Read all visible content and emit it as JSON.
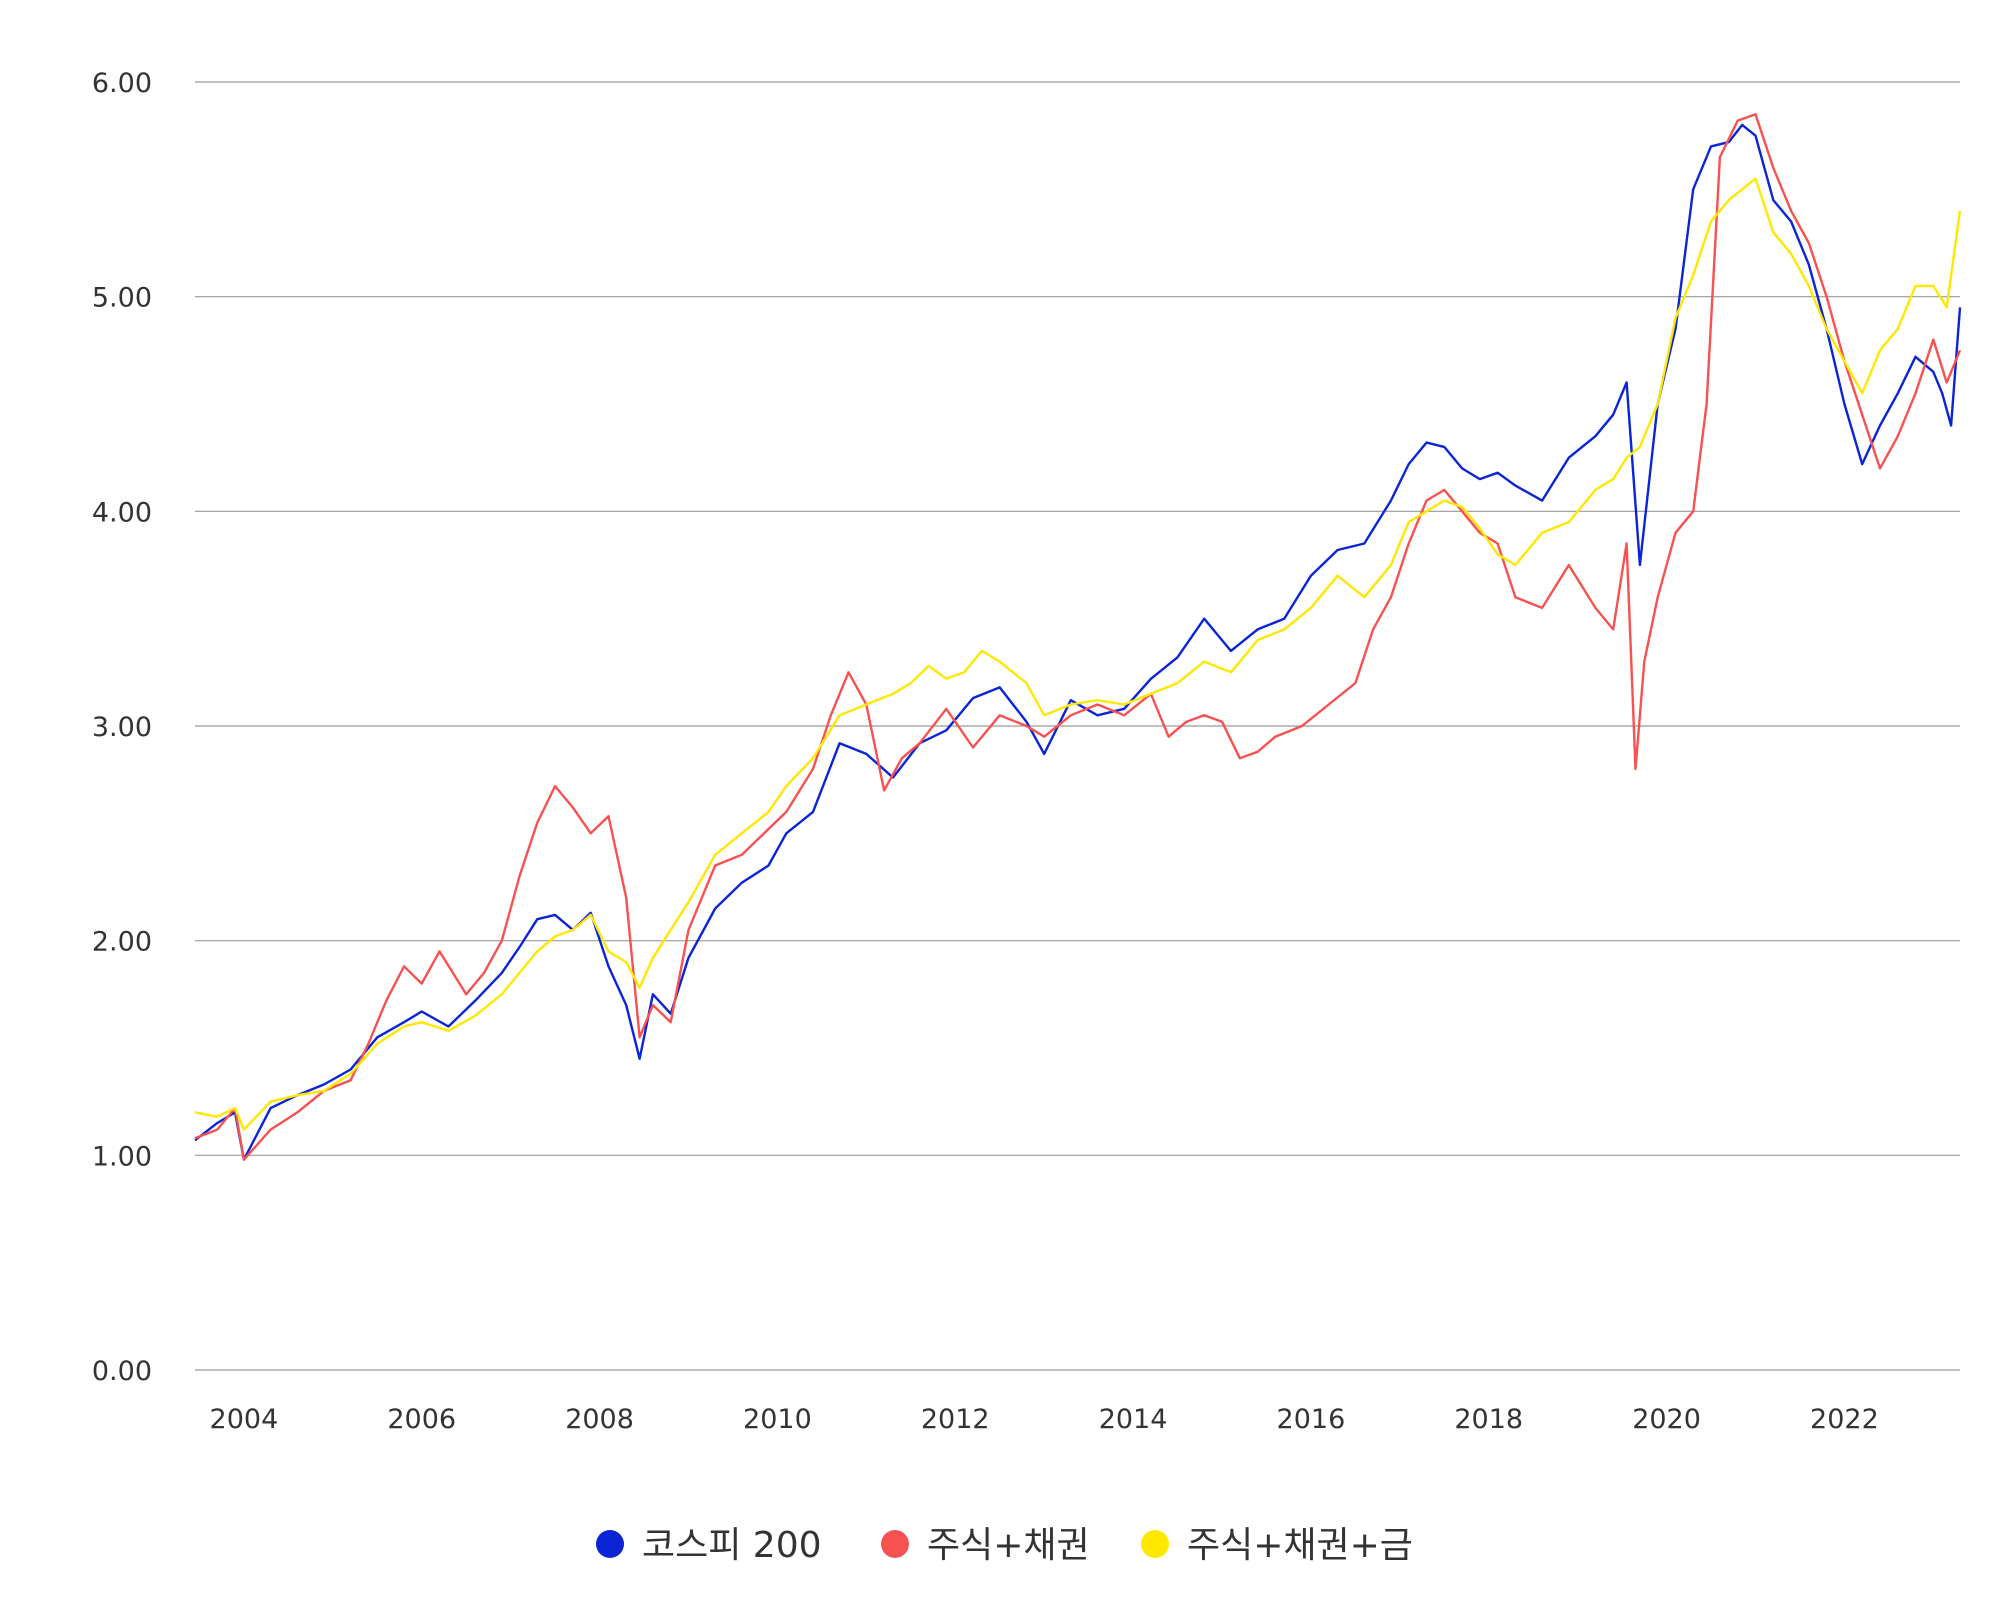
{
  "chart_data": {
    "type": "line",
    "title": "",
    "xlabel": "",
    "ylabel": "",
    "xlim": [
      2003.45,
      2023.3
    ],
    "ylim": [
      0,
      6
    ],
    "y_ticks": [
      "0.00",
      "1.00",
      "2.00",
      "3.00",
      "4.00",
      "5.00",
      "6.00"
    ],
    "x_ticks": [
      "2004",
      "2006",
      "2008",
      "2010",
      "2012",
      "2014",
      "2016",
      "2018",
      "2020",
      "2022"
    ],
    "grid": "horizontal",
    "legend_position": "bottom",
    "series": [
      {
        "name": "코스피 200",
        "color": "#0b24d6",
        "x": [
          2003.45,
          2003.7,
          2003.9,
          2004.0,
          2004.3,
          2004.6,
          2004.9,
          2005.2,
          2005.5,
          2005.8,
          2006.0,
          2006.3,
          2006.6,
          2006.9,
          2007.1,
          2007.3,
          2007.5,
          2007.7,
          2007.9,
          2008.1,
          2008.3,
          2008.45,
          2008.6,
          2008.8,
          2009.0,
          2009.3,
          2009.6,
          2009.9,
          2010.1,
          2010.4,
          2010.7,
          2011.0,
          2011.3,
          2011.6,
          2011.9,
          2012.2,
          2012.5,
          2012.8,
          2013.0,
          2013.3,
          2013.6,
          2013.9,
          2014.2,
          2014.5,
          2014.8,
          2015.1,
          2015.4,
          2015.7,
          2016.0,
          2016.3,
          2016.6,
          2016.9,
          2017.1,
          2017.3,
          2017.5,
          2017.7,
          2017.9,
          2018.1,
          2018.3,
          2018.6,
          2018.9,
          2019.2,
          2019.4,
          2019.55,
          2019.7,
          2019.9,
          2020.1,
          2020.3,
          2020.5,
          2020.7,
          2020.85,
          2021.0,
          2021.2,
          2021.4,
          2021.6,
          2021.8,
          2022.0,
          2022.2,
          2022.4,
          2022.6,
          2022.8,
          2023.0,
          2023.1,
          2023.2,
          2023.3
        ],
        "values": [
          1.07,
          1.15,
          1.2,
          0.98,
          1.22,
          1.28,
          1.33,
          1.4,
          1.55,
          1.62,
          1.67,
          1.6,
          1.72,
          1.85,
          1.97,
          2.1,
          2.12,
          2.05,
          2.13,
          1.88,
          1.7,
          1.45,
          1.75,
          1.66,
          1.92,
          2.15,
          2.27,
          2.35,
          2.5,
          2.6,
          2.92,
          2.87,
          2.76,
          2.92,
          2.98,
          3.13,
          3.18,
          3.02,
          2.87,
          3.12,
          3.05,
          3.08,
          3.22,
          3.32,
          3.5,
          3.35,
          3.45,
          3.5,
          3.7,
          3.82,
          3.85,
          4.05,
          4.22,
          4.32,
          4.3,
          4.2,
          4.15,
          4.18,
          4.12,
          4.05,
          4.25,
          4.35,
          4.45,
          4.6,
          3.75,
          4.5,
          4.85,
          5.5,
          5.7,
          5.72,
          5.8,
          5.75,
          5.45,
          5.35,
          5.15,
          4.85,
          4.5,
          4.22,
          4.4,
          4.55,
          4.72,
          4.65,
          4.55,
          4.4,
          4.95
        ]
      },
      {
        "name": "주식+채권",
        "color": "#f75151",
        "x": [
          2003.45,
          2003.7,
          2003.9,
          2004.0,
          2004.3,
          2004.6,
          2004.9,
          2005.2,
          2005.4,
          2005.6,
          2005.8,
          2006.0,
          2006.2,
          2006.5,
          2006.7,
          2006.9,
          2007.1,
          2007.3,
          2007.5,
          2007.7,
          2007.9,
          2008.1,
          2008.3,
          2008.45,
          2008.6,
          2008.8,
          2009.0,
          2009.3,
          2009.6,
          2009.9,
          2010.1,
          2010.4,
          2010.6,
          2010.8,
          2011.0,
          2011.2,
          2011.4,
          2011.6,
          2011.9,
          2012.2,
          2012.5,
          2012.8,
          2013.0,
          2013.3,
          2013.6,
          2013.9,
          2014.2,
          2014.4,
          2014.6,
          2014.8,
          2015.0,
          2015.2,
          2015.4,
          2015.6,
          2015.9,
          2016.2,
          2016.5,
          2016.7,
          2016.9,
          2017.1,
          2017.3,
          2017.5,
          2017.7,
          2017.9,
          2018.1,
          2018.3,
          2018.6,
          2018.9,
          2019.2,
          2019.4,
          2019.55,
          2019.65,
          2019.75,
          2019.9,
          2020.1,
          2020.3,
          2020.45,
          2020.6,
          2020.8,
          2021.0,
          2021.2,
          2021.4,
          2021.6,
          2021.8,
          2022.0,
          2022.2,
          2022.4,
          2022.6,
          2022.8,
          2023.0,
          2023.15,
          2023.3
        ],
        "values": [
          1.08,
          1.12,
          1.22,
          0.98,
          1.12,
          1.2,
          1.3,
          1.35,
          1.52,
          1.72,
          1.88,
          1.8,
          1.95,
          1.75,
          1.85,
          2.0,
          2.3,
          2.55,
          2.72,
          2.62,
          2.5,
          2.58,
          2.2,
          1.55,
          1.7,
          1.62,
          2.05,
          2.35,
          2.4,
          2.52,
          2.6,
          2.8,
          3.05,
          3.25,
          3.1,
          2.7,
          2.85,
          2.92,
          3.08,
          2.9,
          3.05,
          3.0,
          2.95,
          3.05,
          3.1,
          3.05,
          3.15,
          2.95,
          3.02,
          3.05,
          3.02,
          2.85,
          2.88,
          2.95,
          3.0,
          3.1,
          3.2,
          3.45,
          3.6,
          3.85,
          4.05,
          4.1,
          4.0,
          3.9,
          3.85,
          3.6,
          3.55,
          3.75,
          3.55,
          3.45,
          3.85,
          2.8,
          3.3,
          3.6,
          3.9,
          4.0,
          4.5,
          5.65,
          5.82,
          5.85,
          5.6,
          5.4,
          5.25,
          5.0,
          4.7,
          4.45,
          4.2,
          4.35,
          4.55,
          4.8,
          4.6,
          4.75
        ]
      },
      {
        "name": "주식+채권+금",
        "color": "#ffe800",
        "x": [
          2003.45,
          2003.7,
          2003.9,
          2004.0,
          2004.3,
          2004.6,
          2004.9,
          2005.2,
          2005.5,
          2005.8,
          2006.0,
          2006.3,
          2006.6,
          2006.9,
          2007.1,
          2007.3,
          2007.5,
          2007.7,
          2007.9,
          2008.1,
          2008.3,
          2008.45,
          2008.6,
          2008.8,
          2009.0,
          2009.3,
          2009.6,
          2009.9,
          2010.1,
          2010.4,
          2010.7,
          2011.0,
          2011.3,
          2011.5,
          2011.7,
          2011.9,
          2012.1,
          2012.3,
          2012.5,
          2012.8,
          2013.0,
          2013.3,
          2013.6,
          2013.9,
          2014.2,
          2014.5,
          2014.8,
          2015.1,
          2015.4,
          2015.7,
          2016.0,
          2016.3,
          2016.6,
          2016.9,
          2017.1,
          2017.3,
          2017.5,
          2017.7,
          2017.9,
          2018.1,
          2018.3,
          2018.6,
          2018.9,
          2019.2,
          2019.4,
          2019.55,
          2019.7,
          2019.9,
          2020.1,
          2020.3,
          2020.5,
          2020.7,
          2020.85,
          2021.0,
          2021.2,
          2021.4,
          2021.6,
          2021.8,
          2022.0,
          2022.2,
          2022.4,
          2022.6,
          2022.8,
          2023.0,
          2023.15,
          2023.3
        ],
        "values": [
          1.2,
          1.18,
          1.22,
          1.12,
          1.25,
          1.28,
          1.3,
          1.38,
          1.52,
          1.6,
          1.62,
          1.58,
          1.65,
          1.75,
          1.85,
          1.95,
          2.02,
          2.05,
          2.12,
          1.95,
          1.9,
          1.78,
          1.92,
          2.05,
          2.18,
          2.4,
          2.5,
          2.6,
          2.72,
          2.85,
          3.05,
          3.1,
          3.15,
          3.2,
          3.28,
          3.22,
          3.25,
          3.35,
          3.3,
          3.2,
          3.05,
          3.1,
          3.12,
          3.1,
          3.15,
          3.2,
          3.3,
          3.25,
          3.4,
          3.45,
          3.55,
          3.7,
          3.6,
          3.75,
          3.95,
          4.0,
          4.05,
          4.02,
          3.92,
          3.8,
          3.75,
          3.9,
          3.95,
          4.1,
          4.15,
          4.25,
          4.3,
          4.5,
          4.9,
          5.1,
          5.35,
          5.45,
          5.5,
          5.55,
          5.3,
          5.2,
          5.05,
          4.85,
          4.7,
          4.55,
          4.75,
          4.85,
          5.05,
          5.05,
          4.95,
          5.4
        ]
      }
    ]
  }
}
